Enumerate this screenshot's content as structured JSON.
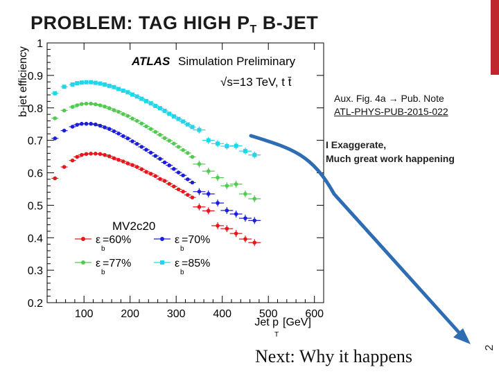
{
  "slide": {
    "title_main": "PROBLEM: TAG HIGH P",
    "title_sub": "T",
    "title_end": " B-JET",
    "number": "2",
    "note_line1": "Aux. Fig. 4a",
    "note_arrow": "→",
    "note_line1b": "Pub. Note",
    "note_link": "ATL-PHYS-PUB-2015-022",
    "exaggerate_line1": "I Exaggerate,",
    "exaggerate_line2": "Much great work happening",
    "next_text": "Next: Why it happens",
    "colors": {
      "accent": "#c0262d",
      "arrow": "#2e6db4"
    }
  },
  "chart_data": {
    "type": "scatter",
    "title_bold": "ATLAS",
    "title_rest": "Simulation Preliminary",
    "energy_label": "√s=13 TeV, t t̄",
    "ylabel": "b-jet efficiency",
    "xlabel": "Jet p",
    "xlabel_sub": "T",
    "xlabel_unit": "[GeV]",
    "xlim": [
      20,
      620
    ],
    "ylim": [
      0.2,
      1.0
    ],
    "xticks": [
      100,
      200,
      300,
      400,
      500,
      600
    ],
    "yticks": [
      0.2,
      0.3,
      0.4,
      0.5,
      0.6,
      0.7,
      0.8,
      0.9,
      1.0
    ],
    "legend_title": "MV2c20",
    "series": [
      {
        "name": "ε_b=60%",
        "label_eps": "ε",
        "label_sub": "b",
        "label_val": "=60%",
        "color": "#e8151b",
        "x": [
          37,
          57,
          75,
          85,
          95,
          105,
          115,
          125,
          135,
          145,
          155,
          165,
          175,
          185,
          195,
          205,
          215,
          225,
          235,
          245,
          255,
          265,
          275,
          285,
          295,
          305,
          315,
          325,
          335,
          350,
          370,
          390,
          410,
          430,
          450,
          470
        ],
        "y": [
          0.583,
          0.618,
          0.638,
          0.649,
          0.655,
          0.658,
          0.659,
          0.659,
          0.658,
          0.655,
          0.651,
          0.645,
          0.64,
          0.635,
          0.629,
          0.624,
          0.618,
          0.611,
          0.603,
          0.597,
          0.59,
          0.581,
          0.575,
          0.566,
          0.558,
          0.549,
          0.542,
          0.532,
          0.524,
          0.495,
          0.483,
          0.437,
          0.428,
          0.413,
          0.396,
          0.385
        ]
      },
      {
        "name": "ε_b=70%",
        "label_eps": "ε",
        "label_sub": "b",
        "label_val": "=70%",
        "color": "#1c1fd6",
        "x": [
          37,
          57,
          75,
          85,
          95,
          105,
          115,
          125,
          135,
          145,
          155,
          165,
          175,
          185,
          195,
          205,
          215,
          225,
          235,
          245,
          255,
          265,
          275,
          285,
          295,
          305,
          315,
          325,
          335,
          350,
          370,
          390,
          410,
          430,
          450,
          470
        ],
        "y": [
          0.706,
          0.73,
          0.742,
          0.748,
          0.751,
          0.751,
          0.751,
          0.749,
          0.745,
          0.74,
          0.735,
          0.728,
          0.721,
          0.713,
          0.706,
          0.697,
          0.689,
          0.68,
          0.671,
          0.662,
          0.652,
          0.643,
          0.632,
          0.623,
          0.612,
          0.601,
          0.592,
          0.58,
          0.57,
          0.542,
          0.535,
          0.507,
          0.484,
          0.473,
          0.46,
          0.453
        ]
      },
      {
        "name": "ε_b=77%",
        "label_eps": "ε",
        "label_sub": "b",
        "label_val": "=77%",
        "color": "#52c94f",
        "x": [
          37,
          57,
          75,
          85,
          95,
          105,
          115,
          125,
          135,
          145,
          155,
          165,
          175,
          185,
          195,
          205,
          215,
          225,
          235,
          245,
          255,
          265,
          275,
          285,
          295,
          305,
          315,
          325,
          335,
          350,
          370,
          390,
          410,
          430,
          450,
          470
        ],
        "y": [
          0.768,
          0.792,
          0.803,
          0.808,
          0.812,
          0.813,
          0.813,
          0.811,
          0.808,
          0.804,
          0.799,
          0.793,
          0.788,
          0.781,
          0.775,
          0.767,
          0.76,
          0.752,
          0.743,
          0.735,
          0.726,
          0.717,
          0.707,
          0.699,
          0.69,
          0.68,
          0.67,
          0.661,
          0.649,
          0.627,
          0.605,
          0.585,
          0.56,
          0.565,
          0.535,
          0.52
        ]
      },
      {
        "name": "ε_b=85%",
        "label_eps": "ε",
        "label_sub": "b",
        "label_val": "=85%",
        "color": "#21d6e8",
        "x": [
          37,
          57,
          75,
          85,
          95,
          105,
          115,
          125,
          135,
          145,
          155,
          165,
          175,
          185,
          195,
          205,
          215,
          225,
          235,
          245,
          255,
          265,
          275,
          285,
          295,
          305,
          315,
          325,
          335,
          350,
          370,
          390,
          410,
          430,
          450,
          470
        ],
        "y": [
          0.845,
          0.865,
          0.872,
          0.876,
          0.878,
          0.879,
          0.879,
          0.877,
          0.875,
          0.872,
          0.868,
          0.864,
          0.858,
          0.853,
          0.848,
          0.841,
          0.835,
          0.828,
          0.821,
          0.814,
          0.806,
          0.799,
          0.791,
          0.782,
          0.774,
          0.766,
          0.758,
          0.749,
          0.741,
          0.732,
          0.7,
          0.69,
          0.682,
          0.683,
          0.667,
          0.655
        ]
      }
    ]
  }
}
